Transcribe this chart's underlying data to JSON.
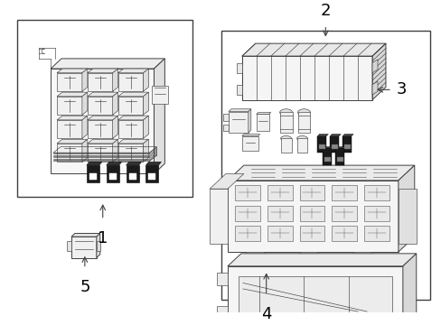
{
  "bg_color": "#ffffff",
  "line_color": "#404040",
  "label_color": "#000000",
  "dark_fill": "#1a1a1a",
  "gray_fill": "#888888",
  "light_gray": "#cccccc",
  "figsize": [
    4.89,
    3.6
  ],
  "dpi": 100
}
